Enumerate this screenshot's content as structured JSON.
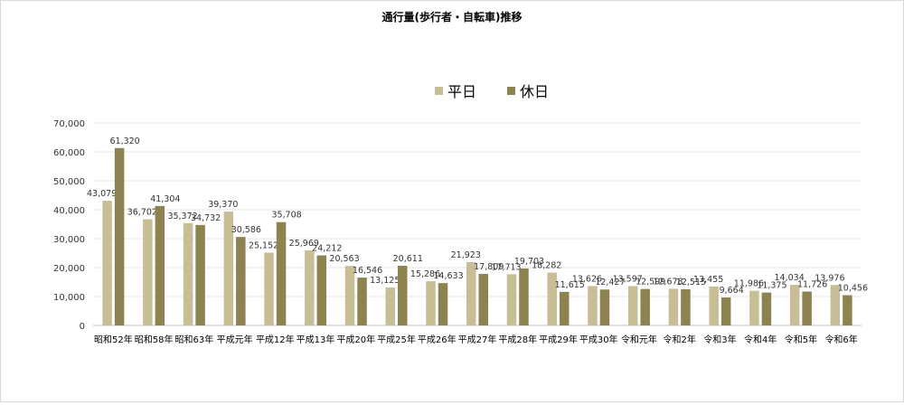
{
  "chart_data": {
    "type": "bar",
    "title": "通行量(歩行者・自転車)推移",
    "categories": [
      "昭和52年",
      "昭和58年",
      "昭和63年",
      "平成元年",
      "平成12年",
      "平成13年",
      "平成20年",
      "平成25年",
      "平成26年",
      "平成27年",
      "平成28年",
      "平成29年",
      "平成30年",
      "令和元年",
      "令和2年",
      "令和3年",
      "令和4年",
      "令和5年",
      "令和6年"
    ],
    "series": [
      {
        "name": "平日",
        "color": "#c8be96",
        "values": [
          43079,
          36702,
          35372,
          39370,
          25152,
          25969,
          20563,
          13125,
          15286,
          21923,
          17713,
          18282,
          13626,
          13597,
          12678,
          13455,
          11986,
          14034,
          13976
        ],
        "labels": [
          "43,079",
          "36,702",
          "35,372",
          "39,370",
          "25,152",
          "25,969",
          "20,563",
          "13,125",
          "15,286",
          "21,923",
          "17,713",
          "18,282",
          "13,626",
          "13,597",
          "12,678",
          "13,455",
          "11,986",
          "14,034",
          "13,976"
        ]
      },
      {
        "name": "休日",
        "color": "#8c8350",
        "values": [
          61320,
          41304,
          34732,
          30586,
          35708,
          24212,
          16546,
          20611,
          14633,
          17809,
          19703,
          11615,
          12427,
          12599,
          12515,
          9664,
          11375,
          11726,
          10456
        ],
        "labels": [
          "61,320",
          "41,304",
          "34,732",
          "30,586",
          "35,708",
          "24,212",
          "16,546",
          "20,611",
          "14,633",
          "17,809",
          "19,703",
          "11,615",
          "12,427",
          "12,599",
          "12,515",
          "9,664",
          "11,375",
          "11,726",
          "10,456"
        ]
      }
    ],
    "ylim": [
      0,
      70000
    ],
    "yticks": [
      "0",
      "10,000",
      "20,000",
      "30,000",
      "40,000",
      "50,000",
      "60,000",
      "70,000"
    ],
    "legend_position": "top-center",
    "grid": true
  }
}
